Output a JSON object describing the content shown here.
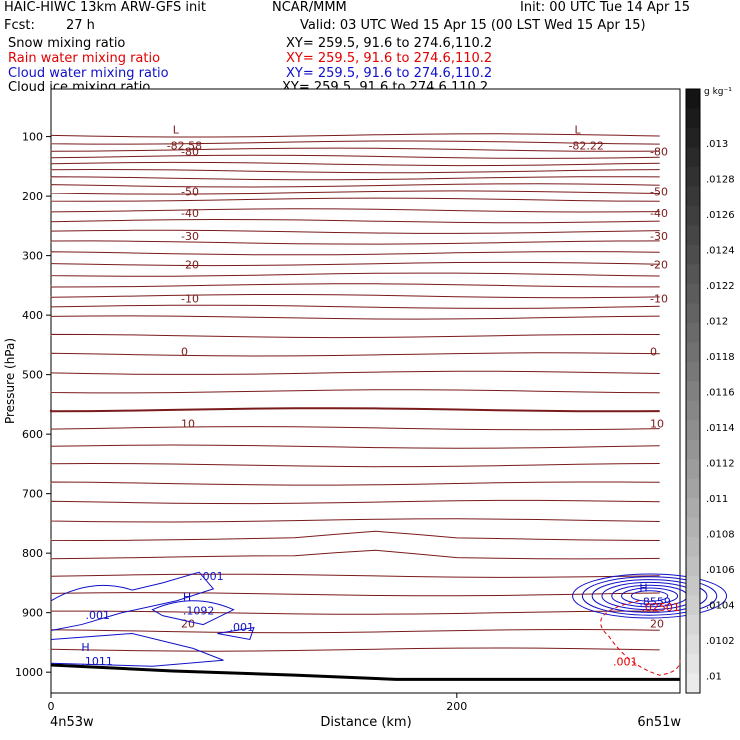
{
  "header": {
    "model": "HAIC-HIWC 13km ARW-GFS init",
    "org": "NCAR/MMM",
    "init": "Init: 00 UTC Tue 14 Apr 15",
    "fcst_label": "Fcst:",
    "fcst_value": "27 h",
    "valid": "Valid: 03 UTC Wed 15 Apr 15 (00 LST Wed 15 Apr 15)"
  },
  "fields": [
    {
      "name": "Snow mixing ratio",
      "color": "#000000",
      "xy": "XY= 259.5, 91.6 to 274.6,110.2"
    },
    {
      "name": "Rain water mixing ratio",
      "color": "#e00000",
      "xy": "XY= 259.5, 91.6 to 274.6,110.2"
    },
    {
      "name": "Cloud water mixing ratio",
      "color": "#1010c8",
      "xy": "XY= 259.5, 91.6 to 274.6,110.2"
    },
    {
      "name": "Cloud ice mixing ratio",
      "color": "#000000",
      "xy": "XY= 259.5, 91.6 to 274.6,110.2"
    }
  ],
  "colorbar": {
    "unit": "g kg⁻¹",
    "labels": [
      ".013",
      ".0128",
      ".0126",
      ".0124",
      ".0122",
      ".012",
      ".0118",
      ".0116",
      ".0114",
      ".0112",
      ".011",
      ".0108",
      ".0106",
      ".0104",
      ".0102",
      ".01"
    ]
  },
  "chart_data": {
    "type": "contour",
    "xlabel": "Distance (km)",
    "ylabel": "Pressure (hPa)",
    "x_ticks": [
      0,
      200
    ],
    "xlim": [
      0,
      310
    ],
    "y_ticks": [
      100,
      200,
      300,
      400,
      500,
      600,
      700,
      800,
      900,
      1000
    ],
    "ylim": [
      20,
      1035
    ],
    "endpoints": {
      "left": "4n53w",
      "right": "6n51w"
    },
    "temperature_contours": [
      {
        "value": -82.58,
        "label": "-82.58",
        "x": 59,
        "p": 108,
        "marker": "L"
      },
      {
        "value": -82.22,
        "label": "-82.22",
        "x": 257,
        "p": 108,
        "marker": "L"
      },
      {
        "value": -80,
        "label": "-80",
        "p": 125
      },
      {
        "value": -50,
        "label": "-50",
        "p": 192
      },
      {
        "value": -40,
        "label": "-40",
        "p": 228
      },
      {
        "value": -30,
        "label": "-30",
        "p": 267
      },
      {
        "value": -20,
        "label": "-20",
        "p": 315
      },
      {
        "value": -10,
        "label": "-10",
        "p": 372
      },
      {
        "value": 0,
        "label": "0",
        "p": 461
      },
      {
        "value": 10,
        "label": "10",
        "p": 582
      },
      {
        "value": 20,
        "label": "20",
        "p": 918
      }
    ],
    "cloud_water": [
      {
        "marker": "H",
        "label": "1011",
        "value": ".1011",
        "x": 15,
        "p": 978
      },
      {
        "marker": "H",
        "label": "1092",
        "value": ".1092",
        "x": 65,
        "p": 893
      },
      {
        "label": ".001",
        "x": 73,
        "p": 845
      },
      {
        "label": ".001",
        "x": 88,
        "p": 931
      },
      {
        "label": ".001",
        "x": 17,
        "p": 911
      },
      {
        "marker": "H",
        "label": "8559",
        "value": ".8559",
        "x": 290,
        "p": 878
      }
    ],
    "rain_water": [
      {
        "label": ".02501",
        "value": ".02501",
        "x": 291,
        "p": 897
      },
      {
        "label": ".001",
        "value": ".001",
        "x": 277,
        "p": 989
      }
    ]
  }
}
